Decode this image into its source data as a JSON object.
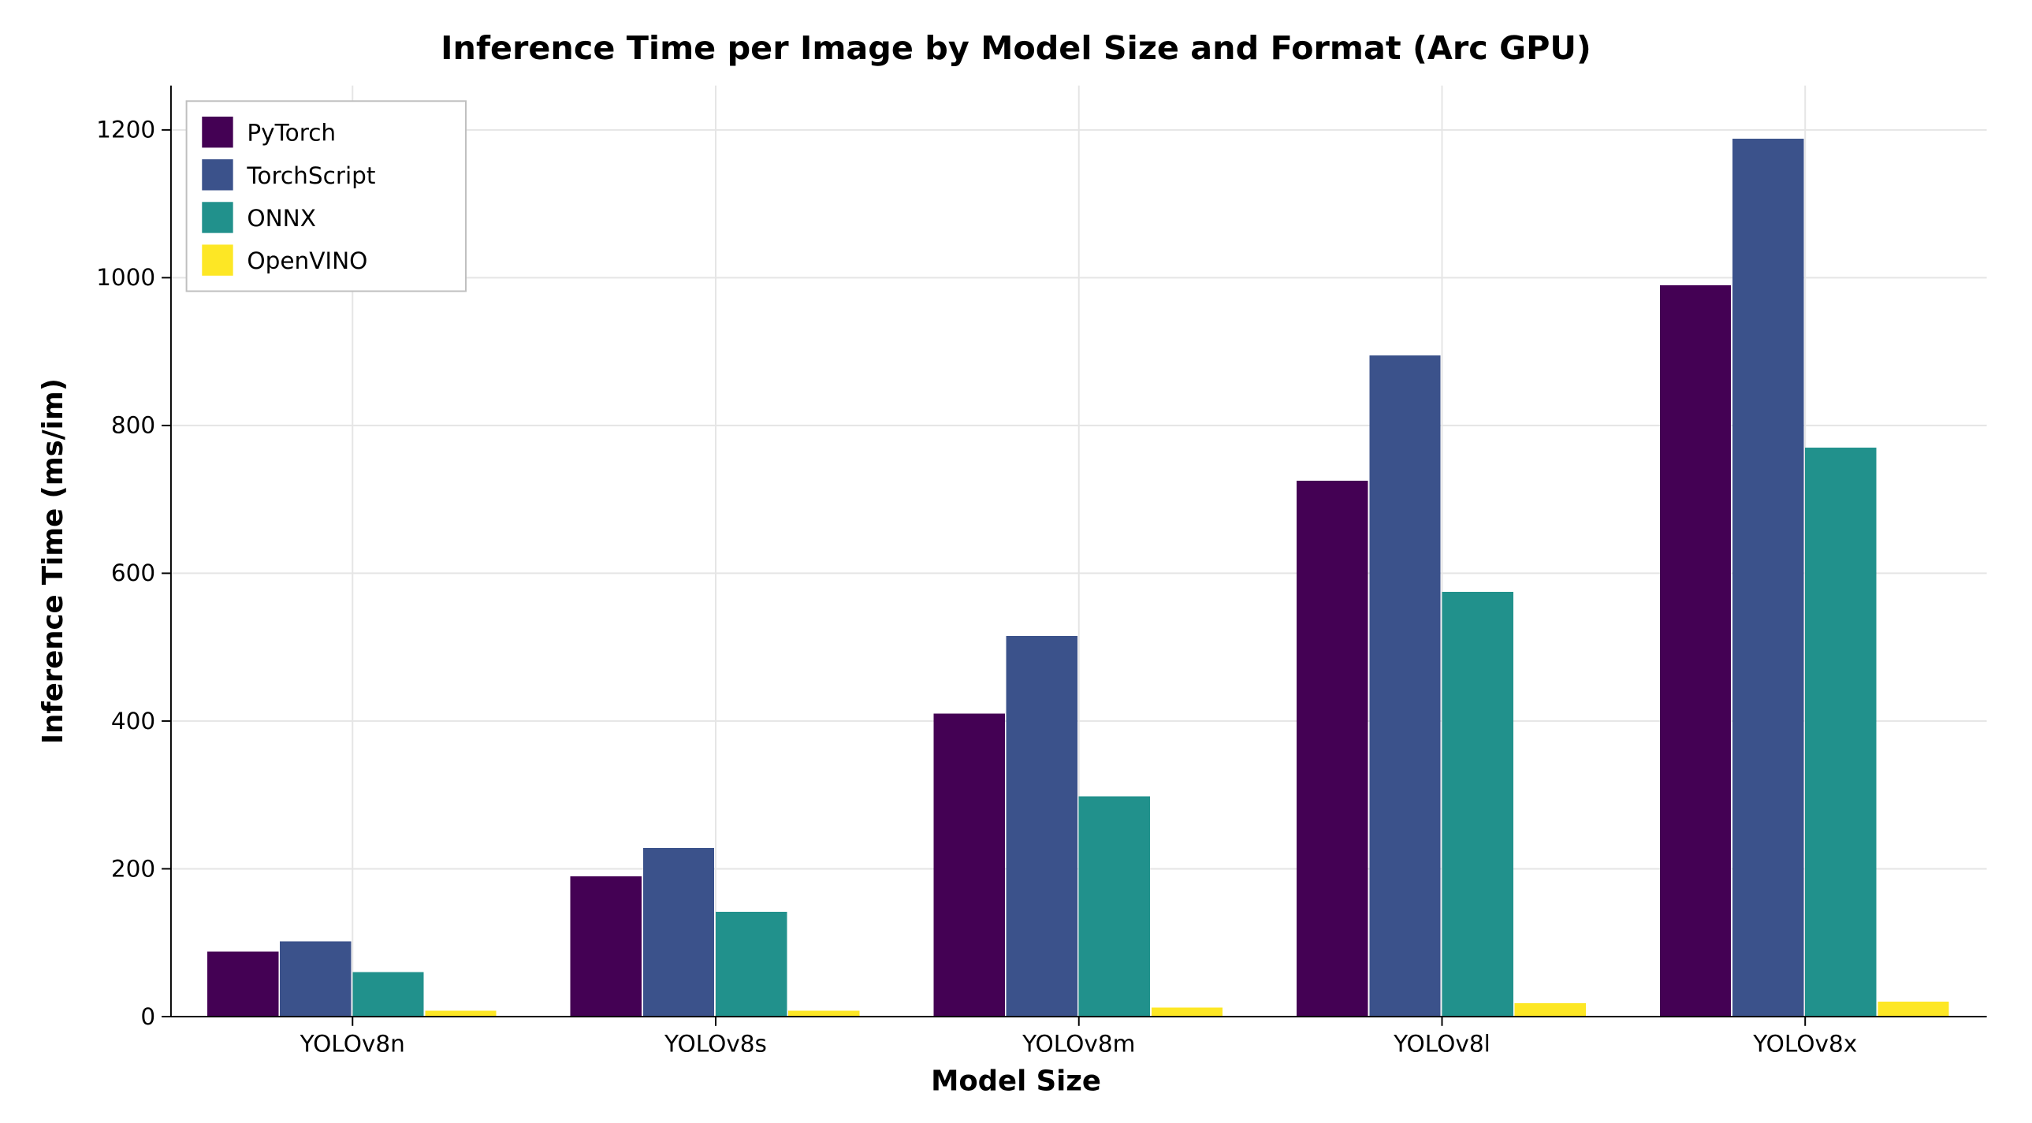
{
  "chart": {
    "type": "bar",
    "title": "Inference Time per Image by Model Size and Format (Arc GPU)",
    "title_fontsize": 42,
    "xlabel": "Model Size",
    "ylabel": "Inference Time (ms/im)",
    "axis_label_fontsize": 36,
    "tick_fontsize": 30,
    "legend_fontsize": 30,
    "background_color": "#ffffff",
    "grid_color": "#e5e5e5",
    "spine_color": "#000000",
    "text_color": "#000000",
    "categories": [
      "YOLOv8n",
      "YOLOv8s",
      "YOLOv8m",
      "YOLOv8l",
      "YOLOv8x"
    ],
    "series": [
      {
        "name": "PyTorch",
        "color": "#440154",
        "values": [
          88,
          190,
          410,
          725,
          990
        ]
      },
      {
        "name": "TorchScript",
        "color": "#3b528b",
        "values": [
          102,
          228,
          515,
          895,
          1188
        ]
      },
      {
        "name": "ONNX",
        "color": "#21918c",
        "values": [
          60,
          142,
          298,
          575,
          770
        ]
      },
      {
        "name": "OpenVINO",
        "color": "#fde725",
        "values": [
          8,
          8,
          12,
          18,
          20
        ]
      }
    ],
    "ylim": [
      0,
      1260
    ],
    "yticks": [
      0,
      200,
      400,
      600,
      800,
      1000,
      1200
    ],
    "bar_group_width": 0.8,
    "bar_gap": 0.0,
    "legend_position": "upper-left"
  }
}
